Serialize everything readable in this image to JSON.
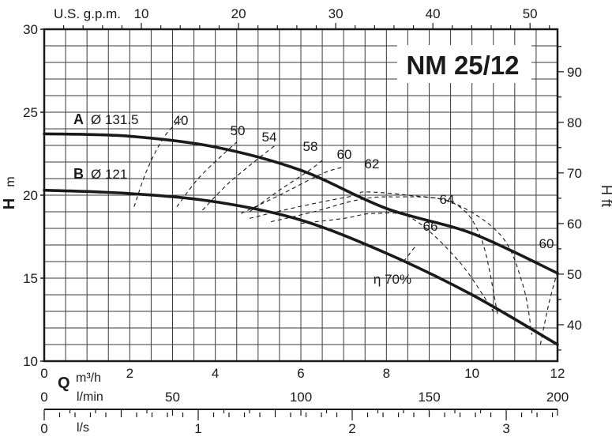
{
  "chart_data": {
    "type": "line",
    "title": "NM 25/12",
    "x_axis": {
      "label": "Q",
      "units": [
        {
          "unit": "m³/h",
          "min": 0,
          "max": 12,
          "ticks": [
            0,
            2,
            4,
            6,
            8,
            10,
            12
          ]
        },
        {
          "unit": "l/min",
          "min": 0,
          "max": 200,
          "ticks": [
            0,
            50,
            100,
            150,
            200
          ]
        },
        {
          "unit": "l/s",
          "min": 0,
          "max": 3.333,
          "ticks": [
            0,
            1,
            2,
            3
          ]
        },
        {
          "unit": "U.S. g.p.m.",
          "min": 0,
          "max": 52.83,
          "ticks": [
            10,
            20,
            30,
            40,
            50
          ]
        }
      ]
    },
    "y_axis_left": {
      "label": "H",
      "unit": "m",
      "min": 10,
      "max": 30,
      "ticks": [
        10,
        15,
        20,
        25,
        30
      ]
    },
    "y_axis_right": {
      "label": "H ft",
      "min": 32.8,
      "max": 98.4,
      "ticks": [
        40,
        50,
        60,
        70,
        80,
        90
      ]
    },
    "grid": true,
    "series": [
      {
        "name": "A",
        "impeller": "Ø 131.5",
        "x": [
          0,
          2,
          4,
          6,
          8,
          10,
          12
        ],
        "y": [
          23.7,
          23.55,
          22.9,
          21.5,
          19.2,
          17.7,
          15.3
        ]
      },
      {
        "name": "B",
        "impeller": "Ø 121",
        "x": [
          0,
          2,
          4,
          6,
          8,
          10,
          12
        ],
        "y": [
          20.3,
          20.1,
          19.6,
          18.5,
          16.5,
          14.0,
          11.0
        ]
      }
    ],
    "efficiency_curves": {
      "label": "η",
      "values": [
        {
          "eta": "40",
          "label_text": "40",
          "x": [
            2.1,
            2.4,
            2.8,
            3.2
          ],
          "y": [
            19.3,
            21.5,
            23.5,
            24.6
          ]
        },
        {
          "eta": "50",
          "label_text": "50",
          "x": [
            3.1,
            3.6,
            4.2,
            4.5
          ],
          "y": [
            19.3,
            21.0,
            22.5,
            23.2
          ]
        },
        {
          "eta": "54",
          "label_text": "54",
          "x": [
            3.7,
            4.3,
            5.0,
            5.4
          ],
          "y": [
            19.1,
            20.7,
            22.2,
            23.0
          ]
        },
        {
          "eta": "58",
          "label_text": "58",
          "x": [
            4.8,
            5.5,
            6.2,
            6.5
          ],
          "y": [
            19.0,
            20.3,
            21.5,
            22.1
          ]
        },
        {
          "eta": "60",
          "label_text": "60",
          "x": [
            4.6,
            5.5,
            6.5,
            7.0
          ],
          "y": [
            18.9,
            20.0,
            21.3,
            21.7
          ]
        },
        {
          "eta": "62",
          "label_text": "62",
          "x": [
            4.8,
            5.6,
            6.5,
            7.3,
            7.5,
            8.5,
            9.6,
            10.7,
            11.2,
            11.4
          ],
          "y": [
            18.6,
            19.1,
            19.6,
            20.0,
            20.2,
            20.0,
            19.5,
            17.5,
            14.5,
            11.6
          ]
        },
        {
          "eta": "64",
          "label_text": "64",
          "x": [
            5.3,
            6.3,
            7.3,
            8.1,
            9.5,
            10.2,
            10.6
          ],
          "y": [
            18.4,
            19.0,
            19.7,
            19.9,
            19.6,
            17.5,
            12.8
          ]
        },
        {
          "eta": "66",
          "label_text": "66",
          "x": [
            6.0,
            7.0,
            7.7,
            8.6,
            9.7,
            10.5
          ],
          "y": [
            18.3,
            18.6,
            18.9,
            18.6,
            16.0,
            13.0
          ]
        },
        {
          "eta": "70",
          "label_text": "η 70%",
          "x": [
            8.4,
            8.7
          ],
          "y": [
            16.0,
            17.0
          ]
        },
        {
          "eta": "60",
          "label_text": "60",
          "x": [
            12.0,
            11.8,
            11.6
          ],
          "y": [
            15.4,
            13.5,
            11.0
          ]
        }
      ]
    }
  },
  "labels": {
    "title": "NM 25/12",
    "curve_a_letter": "A",
    "curve_a_diameter": "Ø 131.5",
    "curve_b_letter": "B",
    "curve_b_diameter": "Ø 121",
    "y_left_bold": "H",
    "y_left_unit": "m",
    "y_right": "H ft",
    "gpm_label": "U.S. g.p.m.",
    "q_label": "Q",
    "m3h_label": "m³/h",
    "lmin_label": "l/min",
    "ls_label": "l/s"
  }
}
